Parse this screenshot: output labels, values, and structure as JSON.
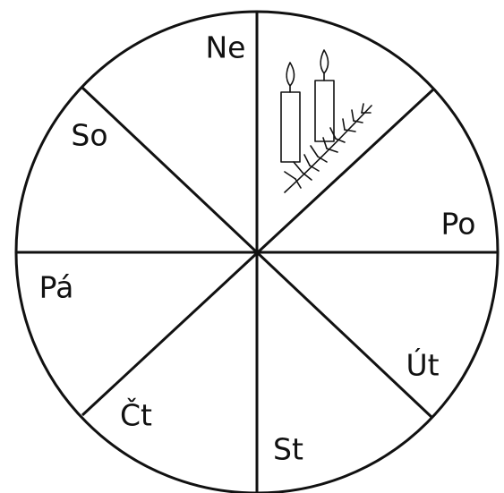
{
  "days": [
    "Ne",
    "Po",
    "Út",
    "St",
    "Čt",
    "Pá",
    "So"
  ]
}
